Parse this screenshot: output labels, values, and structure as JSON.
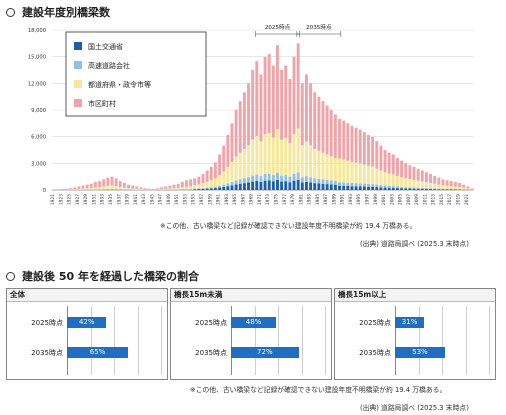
{
  "sections": {
    "top_title": "建設年度別橋梁数",
    "bottom_title": "建設後 50 年を経過した橋梁の割合"
  },
  "chart_data": [
    {
      "type": "bar",
      "stacked": true,
      "title": "建設年度別橋梁数",
      "ylim": [
        0,
        18000
      ],
      "yticks": [
        "0",
        "3,000",
        "6,000",
        "9,000",
        "12,000",
        "15,000",
        "18,000"
      ],
      "ytick_values": [
        0,
        3000,
        6000,
        9000,
        12000,
        15000,
        18000
      ],
      "grid": true,
      "legend_position": "top-left",
      "x_start_year": 1921,
      "x_end_year": 2022,
      "xtick_step": 2,
      "colors": {
        "national": "#1b5fae",
        "expressway": "#8fc1e6",
        "prefecture": "#f7e79a",
        "municipal": "#f2a3a8"
      },
      "series": [
        {
          "name": "国土交通省",
          "key": "national"
        },
        {
          "name": "高速道路会社",
          "key": "expressway"
        },
        {
          "name": "都道府県・政令市等",
          "key": "prefecture"
        },
        {
          "name": "市区町村",
          "key": "municipal"
        }
      ],
      "approx_totals_by_year": {
        "1921": 50,
        "1922": 80,
        "1923": 120,
        "1924": 150,
        "1925": 200,
        "1926": 300,
        "1927": 400,
        "1928": 500,
        "1929": 600,
        "1930": 700,
        "1931": 900,
        "1932": 1000,
        "1933": 1200,
        "1934": 1400,
        "1935": 1500,
        "1936": 1300,
        "1937": 1000,
        "1938": 800,
        "1939": 600,
        "1940": 500,
        "1941": 400,
        "1942": 300,
        "1943": 200,
        "1944": 150,
        "1945": 100,
        "1946": 200,
        "1947": 300,
        "1948": 400,
        "1949": 500,
        "1950": 600,
        "1951": 700,
        "1952": 900,
        "1953": 1100,
        "1954": 1200,
        "1955": 1300,
        "1956": 1500,
        "1957": 1800,
        "1958": 2200,
        "1959": 2600,
        "1960": 3100,
        "1961": 4000,
        "1962": 5000,
        "1963": 6200,
        "1964": 7500,
        "1965": 9000,
        "1966": 10000,
        "1967": 11000,
        "1968": 12000,
        "1969": 13500,
        "1970": 14500,
        "1971": 13000,
        "1972": 15000,
        "1973": 15300,
        "1974": 14000,
        "1975": 16300,
        "1976": 13500,
        "1977": 14000,
        "1978": 12500,
        "1979": 15000,
        "1980": 16500,
        "1981": 12000,
        "1982": 13000,
        "1983": 12000,
        "1984": 11000,
        "1985": 10500,
        "1986": 10000,
        "1987": 9500,
        "1988": 9000,
        "1989": 8500,
        "1990": 8000,
        "1991": 7800,
        "1992": 7500,
        "1993": 7200,
        "1994": 7000,
        "1995": 6800,
        "1996": 6500,
        "1997": 6200,
        "1998": 6000,
        "1999": 5500,
        "2000": 5000,
        "2001": 4500,
        "2002": 4200,
        "2003": 4000,
        "2004": 3600,
        "2005": 3300,
        "2006": 3000,
        "2007": 2800,
        "2008": 2600,
        "2009": 2400,
        "2010": 2200,
        "2011": 2000,
        "2012": 1800,
        "2013": 1600,
        "2014": 1400,
        "2015": 1200,
        "2016": 1100,
        "2017": 1000,
        "2018": 900,
        "2019": 800,
        "2020": 600,
        "2021": 400,
        "2022": 200
      },
      "annotations": [
        {
          "text": "2025時点",
          "year": 1975
        },
        {
          "text": "2035時点",
          "year": 1985
        }
      ]
    },
    {
      "type": "bar",
      "orientation": "horizontal",
      "panels": [
        {
          "title": "全体",
          "categories": [
            "2025時点",
            "2035時点"
          ],
          "values": [
            42,
            65
          ]
        },
        {
          "title": "橋長15m未満",
          "categories": [
            "2025時点",
            "2035時点"
          ],
          "values": [
            48,
            72
          ]
        },
        {
          "title": "橋長15m以上",
          "categories": [
            "2025時点",
            "2035時点"
          ],
          "values": [
            31,
            53
          ]
        }
      ],
      "unit": "%",
      "xlim": [
        0,
        100
      ]
    }
  ],
  "notes": {
    "top_note": "※この他、古い橋梁など記録が確認できない建設年度不明橋梁が約 19.4 万橋ある。",
    "top_source": "(出典) 道路局調べ (2025.3 末時点)",
    "bottom_note": "※この他、古い橋梁など記録が確認できない建設年度不明橋梁が約 19.4 万橋ある。",
    "bottom_source": "(出典) 道路局調べ (2025.3 末時点)"
  }
}
